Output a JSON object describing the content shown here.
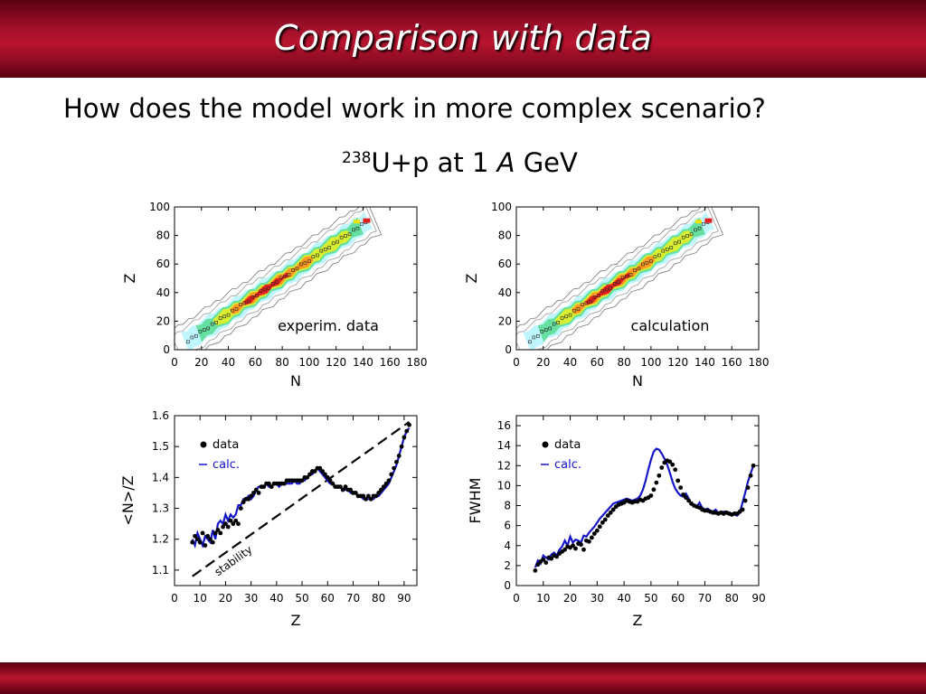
{
  "slide": {
    "title": "Comparison with data",
    "question": "How does the model work in more complex scenario?",
    "reaction_mass": "238",
    "reaction_rest": "U+p at 1 ",
    "reaction_unit_a": "A",
    "reaction_unit_gev": " GeV",
    "colors": {
      "bar": "#a0102a",
      "calc": "#1515c8",
      "data": "#000000"
    }
  },
  "chart_data": [
    {
      "type": "heatmap",
      "label": "experim. data",
      "xlabel": "N",
      "ylabel": "Z",
      "xlim": [
        0,
        180
      ],
      "ylim": [
        0,
        100
      ],
      "xticks": [
        "0",
        "20",
        "40",
        "60",
        "80",
        "100",
        "120",
        "140",
        "160",
        "180"
      ],
      "yticks": [
        "0",
        "20",
        "40",
        "60",
        "80",
        "100"
      ]
    },
    {
      "type": "heatmap",
      "label": "calculation",
      "xlabel": "N",
      "ylabel": "Z",
      "xlim": [
        0,
        180
      ],
      "ylim": [
        0,
        100
      ],
      "xticks": [
        "0",
        "20",
        "40",
        "60",
        "80",
        "100",
        "120",
        "140",
        "160",
        "180"
      ],
      "yticks": [
        "0",
        "20",
        "40",
        "60",
        "80",
        "100"
      ]
    },
    {
      "type": "scatter",
      "xlabel": "Z",
      "ylabel": "<N>/Z",
      "xlim": [
        0,
        95
      ],
      "ylim": [
        1.05,
        1.6
      ],
      "xticks": [
        "0",
        "10",
        "20",
        "30",
        "40",
        "50",
        "60",
        "70",
        "80",
        "90"
      ],
      "yticks": [
        "1.1",
        "1.2",
        "1.3",
        "1.4",
        "1.5",
        "1.6"
      ],
      "legend": [
        "data",
        "calc."
      ],
      "annotation": "stability",
      "stability_line": {
        "x": [
          7,
          92
        ],
        "y": [
          1.08,
          1.58
        ]
      },
      "series": [
        {
          "name": "data",
          "x": [
            7,
            8,
            9,
            10,
            11,
            12,
            13,
            14,
            15,
            16,
            17,
            18,
            19,
            20,
            21,
            22,
            23,
            24,
            25,
            26,
            27,
            28,
            29,
            30,
            31,
            32,
            33,
            34,
            35,
            36,
            37,
            38,
            39,
            40,
            41,
            42,
            43,
            44,
            45,
            46,
            47,
            48,
            49,
            50,
            51,
            52,
            53,
            54,
            55,
            56,
            57,
            58,
            59,
            60,
            61,
            62,
            63,
            64,
            65,
            66,
            67,
            68,
            69,
            70,
            71,
            72,
            73,
            74,
            75,
            76,
            77,
            78,
            79,
            80,
            81,
            82,
            83,
            84,
            85,
            86,
            87,
            88,
            89,
            90,
            91,
            92
          ],
          "y": [
            1.19,
            1.21,
            1.2,
            1.19,
            1.22,
            1.18,
            1.21,
            1.2,
            1.19,
            1.22,
            1.23,
            1.22,
            1.24,
            1.25,
            1.24,
            1.26,
            1.25,
            1.26,
            1.25,
            1.3,
            1.32,
            1.33,
            1.33,
            1.34,
            1.35,
            1.36,
            1.35,
            1.37,
            1.37,
            1.38,
            1.38,
            1.37,
            1.38,
            1.38,
            1.38,
            1.38,
            1.38,
            1.39,
            1.39,
            1.39,
            1.39,
            1.39,
            1.39,
            1.39,
            1.4,
            1.4,
            1.41,
            1.42,
            1.42,
            1.43,
            1.43,
            1.42,
            1.41,
            1.4,
            1.39,
            1.38,
            1.37,
            1.37,
            1.37,
            1.36,
            1.37,
            1.36,
            1.36,
            1.35,
            1.35,
            1.34,
            1.34,
            1.34,
            1.33,
            1.34,
            1.33,
            1.34,
            1.34,
            1.35,
            1.36,
            1.37,
            1.38,
            1.39,
            1.41,
            1.43,
            1.45,
            1.47,
            1.5,
            1.53,
            1.55,
            1.57
          ]
        },
        {
          "name": "calc.",
          "x": [
            7,
            8,
            9,
            10,
            11,
            12,
            13,
            14,
            15,
            16,
            17,
            18,
            19,
            20,
            21,
            22,
            23,
            24,
            25,
            26,
            27,
            28,
            29,
            30,
            31,
            32,
            33,
            34,
            35,
            36,
            37,
            38,
            39,
            40,
            41,
            42,
            43,
            44,
            45,
            46,
            47,
            48,
            49,
            50,
            51,
            52,
            53,
            54,
            55,
            56,
            57,
            58,
            59,
            60,
            61,
            62,
            63,
            64,
            65,
            66,
            67,
            68,
            69,
            70,
            71,
            72,
            73,
            74,
            75,
            76,
            77,
            78,
            79,
            80,
            81,
            82,
            83,
            84,
            85,
            86,
            87,
            88,
            89,
            90,
            91,
            92
          ],
          "y": [
            1.2,
            1.18,
            1.22,
            1.2,
            1.18,
            1.21,
            1.2,
            1.19,
            1.23,
            1.2,
            1.25,
            1.26,
            1.25,
            1.28,
            1.26,
            1.28,
            1.27,
            1.28,
            1.31,
            1.31,
            1.33,
            1.33,
            1.34,
            1.33,
            1.34,
            1.36,
            1.37,
            1.37,
            1.37,
            1.38,
            1.37,
            1.37,
            1.38,
            1.38,
            1.37,
            1.38,
            1.38,
            1.38,
            1.38,
            1.38,
            1.39,
            1.38,
            1.38,
            1.39,
            1.39,
            1.4,
            1.41,
            1.41,
            1.42,
            1.43,
            1.42,
            1.41,
            1.4,
            1.39,
            1.38,
            1.38,
            1.37,
            1.37,
            1.37,
            1.36,
            1.36,
            1.36,
            1.35,
            1.35,
            1.35,
            1.34,
            1.34,
            1.33,
            1.33,
            1.33,
            1.33,
            1.33,
            1.34,
            1.34,
            1.35,
            1.36,
            1.37,
            1.38,
            1.4,
            1.42,
            1.44,
            1.47,
            1.5,
            1.53,
            1.55,
            1.56
          ]
        }
      ]
    },
    {
      "type": "scatter",
      "xlabel": "Z",
      "ylabel": "FWHM",
      "xlim": [
        0,
        90
      ],
      "ylim": [
        0,
        17
      ],
      "xticks": [
        "0",
        "10",
        "20",
        "30",
        "40",
        "50",
        "60",
        "70",
        "80",
        "90"
      ],
      "yticks": [
        "0",
        "2",
        "4",
        "6",
        "8",
        "10",
        "12",
        "14",
        "16"
      ],
      "legend": [
        "data",
        "calc."
      ],
      "series": [
        {
          "name": "data",
          "x": [
            7,
            8,
            9,
            10,
            11,
            12,
            13,
            14,
            15,
            16,
            17,
            18,
            19,
            20,
            21,
            22,
            23,
            24,
            25,
            26,
            27,
            28,
            29,
            30,
            31,
            32,
            33,
            34,
            35,
            36,
            37,
            38,
            39,
            40,
            41,
            42,
            43,
            44,
            45,
            46,
            47,
            48,
            49,
            50,
            51,
            52,
            53,
            54,
            55,
            56,
            57,
            58,
            59,
            60,
            61,
            62,
            63,
            64,
            65,
            66,
            67,
            68,
            69,
            70,
            71,
            72,
            73,
            74,
            75,
            76,
            77,
            78,
            79,
            80,
            81,
            82,
            83,
            84,
            85,
            86,
            87,
            88
          ],
          "y": [
            1.5,
            2.1,
            2.4,
            2.6,
            2.3,
            2.8,
            2.7,
            3.0,
            2.9,
            3.2,
            3.4,
            3.6,
            3.9,
            3.8,
            4.0,
            3.7,
            4.2,
            4.1,
            3.6,
            4.5,
            4.4,
            4.8,
            5.2,
            5.5,
            5.9,
            6.3,
            6.6,
            7.0,
            7.3,
            7.6,
            7.9,
            8.1,
            8.2,
            8.3,
            8.5,
            8.4,
            8.3,
            8.4,
            8.4,
            8.6,
            8.5,
            8.7,
            8.8,
            9.0,
            9.6,
            10.3,
            11.0,
            11.8,
            12.3,
            12.5,
            12.4,
            12.1,
            11.6,
            10.5,
            9.8,
            9.1,
            8.8,
            8.5,
            8.2,
            8.0,
            7.9,
            7.8,
            7.6,
            7.5,
            7.5,
            7.4,
            7.3,
            7.3,
            7.2,
            7.3,
            7.2,
            7.3,
            7.2,
            7.1,
            7.2,
            7.2,
            7.4,
            7.6,
            8.5,
            9.8,
            11.0,
            12.0
          ]
        },
        {
          "name": "calc.",
          "x": [
            7,
            8,
            9,
            10,
            11,
            12,
            13,
            14,
            15,
            16,
            17,
            18,
            19,
            20,
            21,
            22,
            23,
            24,
            25,
            26,
            27,
            28,
            29,
            30,
            31,
            32,
            33,
            34,
            35,
            36,
            37,
            38,
            39,
            40,
            41,
            42,
            43,
            44,
            45,
            46,
            47,
            48,
            49,
            50,
            51,
            52,
            53,
            54,
            55,
            56,
            57,
            58,
            59,
            60,
            61,
            62,
            63,
            64,
            65,
            66,
            67,
            68,
            69,
            70,
            71,
            72,
            73,
            74,
            75,
            76,
            77,
            78,
            79,
            80,
            81,
            82,
            83,
            84,
            85,
            86,
            87,
            88
          ],
          "y": [
            1.8,
            2.5,
            2.2,
            3.0,
            2.8,
            2.6,
            3.1,
            3.3,
            3.0,
            3.6,
            3.9,
            4.5,
            4.0,
            4.9,
            4.3,
            4.6,
            4.5,
            4.3,
            5.0,
            4.9,
            5.3,
            5.6,
            5.9,
            6.3,
            6.7,
            7.0,
            7.3,
            7.6,
            7.9,
            8.2,
            8.3,
            8.4,
            8.5,
            8.6,
            8.7,
            8.6,
            8.5,
            8.6,
            8.7,
            9.0,
            9.6,
            10.5,
            11.6,
            12.6,
            13.4,
            13.7,
            13.6,
            13.2,
            12.7,
            12.1,
            11.3,
            10.4,
            9.7,
            9.3,
            9.0,
            8.9,
            9.2,
            8.7,
            8.2,
            8.0,
            7.9,
            8.3,
            7.8,
            7.6,
            7.7,
            7.5,
            7.4,
            7.6,
            7.3,
            7.3,
            7.4,
            7.4,
            7.3,
            7.2,
            7.1,
            7.0,
            7.3,
            8.3,
            9.3,
            10.4,
            11.2,
            12.0
          ]
        }
      ]
    }
  ]
}
